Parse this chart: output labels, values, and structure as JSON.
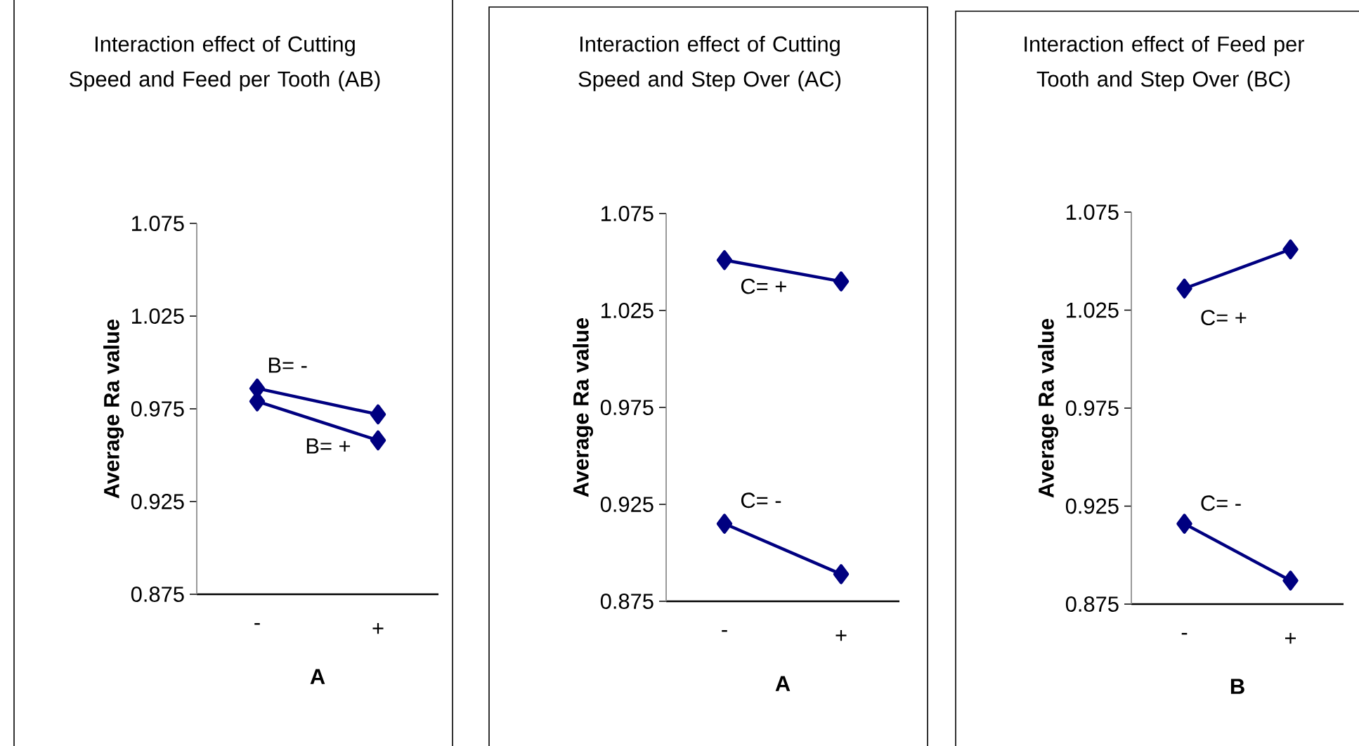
{
  "chart_data": [
    {
      "type": "line",
      "title": "Interaction effect of Cutting Speed and Feed per Tooth (AB)",
      "xlabel": "A",
      "ylabel": "Average Ra value",
      "categories": [
        "-",
        "+"
      ],
      "ylim": [
        0.875,
        1.075
      ],
      "yticks": [
        0.875,
        0.925,
        0.975,
        1.025,
        1.075
      ],
      "marker": "diamond",
      "series": [
        {
          "name": "B= -",
          "color": "#000080",
          "values": [
            0.986,
            0.972
          ]
        },
        {
          "name": "B= +",
          "color": "#000080",
          "values": [
            0.979,
            0.958
          ]
        }
      ]
    },
    {
      "type": "line",
      "title": "Interaction effect of Cutting Speed and Step Over (AC)",
      "xlabel": "A",
      "ylabel": "Average Ra value",
      "categories": [
        "-",
        "+"
      ],
      "ylim": [
        0.875,
        1.075
      ],
      "yticks": [
        0.875,
        0.925,
        0.975,
        1.025,
        1.075
      ],
      "marker": "diamond",
      "series": [
        {
          "name": "C= +",
          "color": "#000080",
          "values": [
            1.051,
            1.04
          ]
        },
        {
          "name": "C= -",
          "color": "#000080",
          "values": [
            0.915,
            0.889
          ]
        }
      ]
    },
    {
      "type": "line",
      "title": "Interaction effect of Feed per Tooth and Step Over (BC)",
      "xlabel": "B",
      "ylabel": "Average Ra value",
      "categories": [
        "-",
        "+"
      ],
      "ylim": [
        0.875,
        1.075
      ],
      "yticks": [
        0.875,
        0.925,
        0.975,
        1.025,
        1.075
      ],
      "marker": "diamond",
      "series": [
        {
          "name": "C= +",
          "color": "#000080",
          "values": [
            1.036,
            1.056
          ]
        },
        {
          "name": "C= -",
          "color": "#000080",
          "values": [
            0.916,
            0.887
          ]
        }
      ]
    }
  ]
}
